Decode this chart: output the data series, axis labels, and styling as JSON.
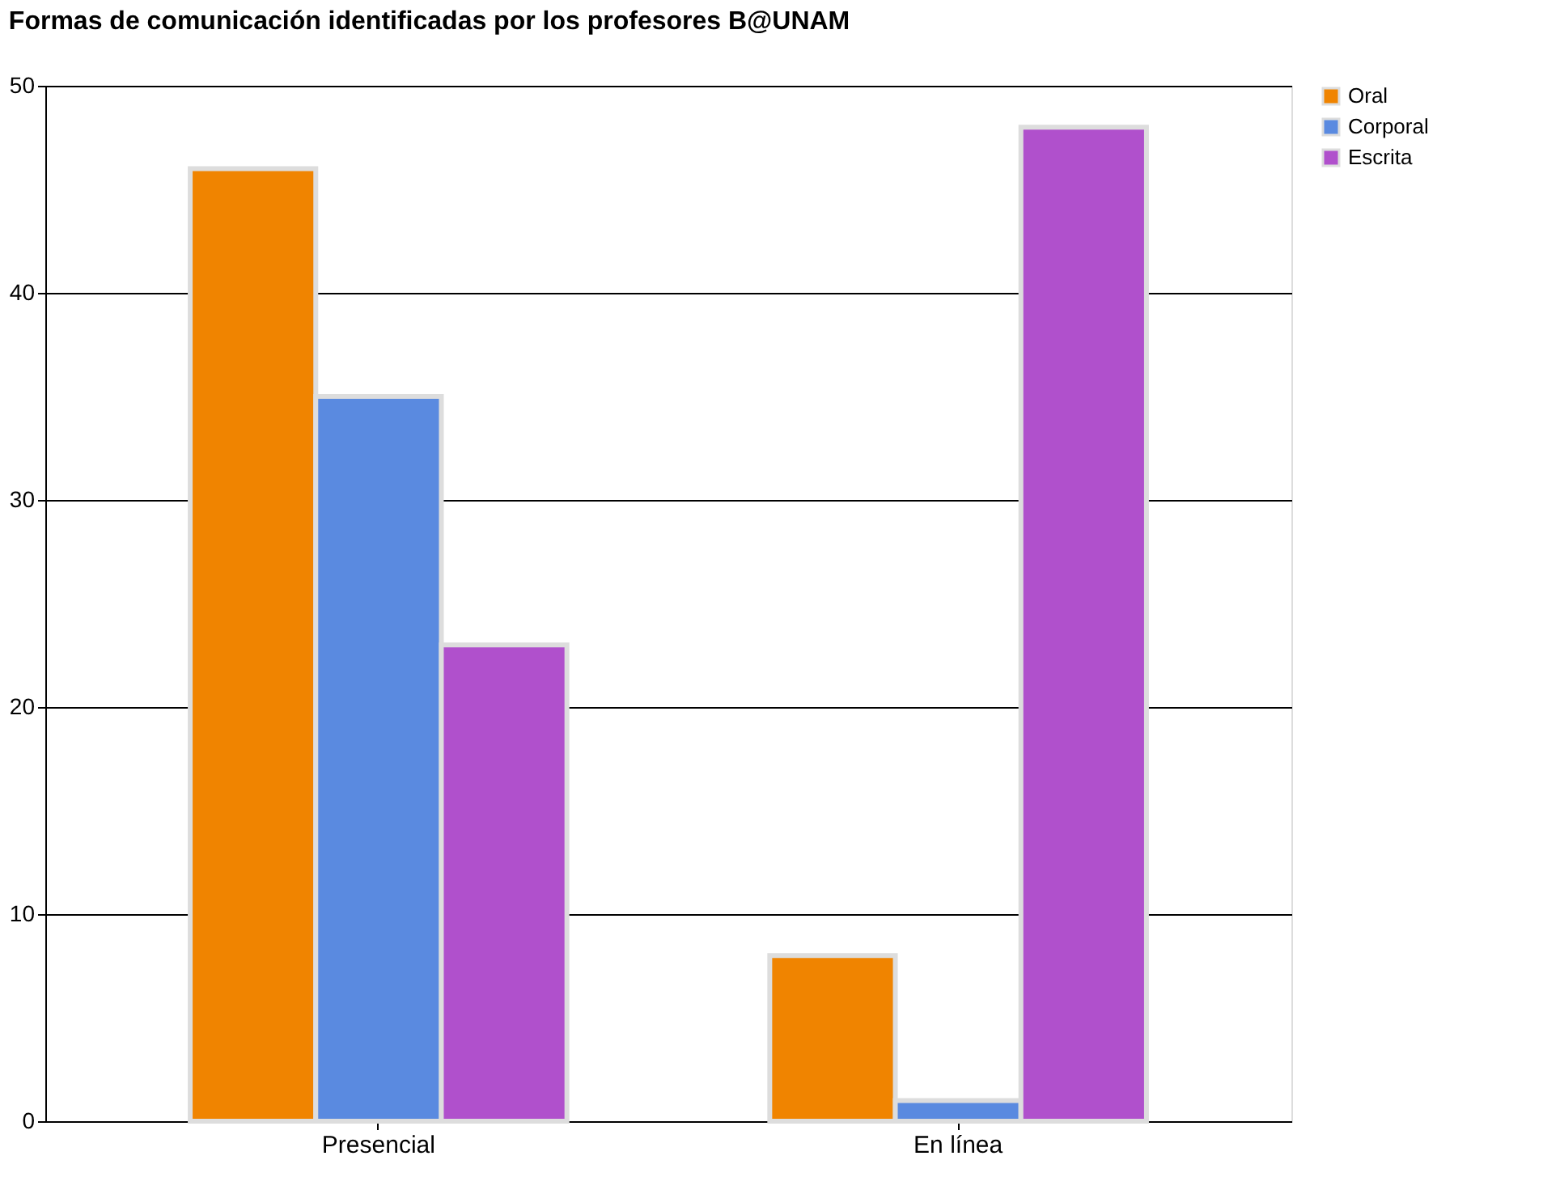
{
  "chart_data": {
    "type": "bar",
    "title": "Formas de comunicación identificadas por los profesores B@UNAM",
    "categories": [
      "Presencial",
      "En línea"
    ],
    "series": [
      {
        "name": "Oral",
        "color": "#f08400",
        "values": [
          46,
          8
        ]
      },
      {
        "name": "Corporal",
        "color": "#5a8ae0",
        "values": [
          35,
          1
        ]
      },
      {
        "name": "Escrita",
        "color": "#b050cc",
        "values": [
          23,
          48
        ]
      }
    ],
    "ylim": [
      0,
      50
    ],
    "yticks": [
      0,
      10,
      20,
      30,
      40,
      50
    ],
    "grid": "y",
    "legend": "right"
  }
}
